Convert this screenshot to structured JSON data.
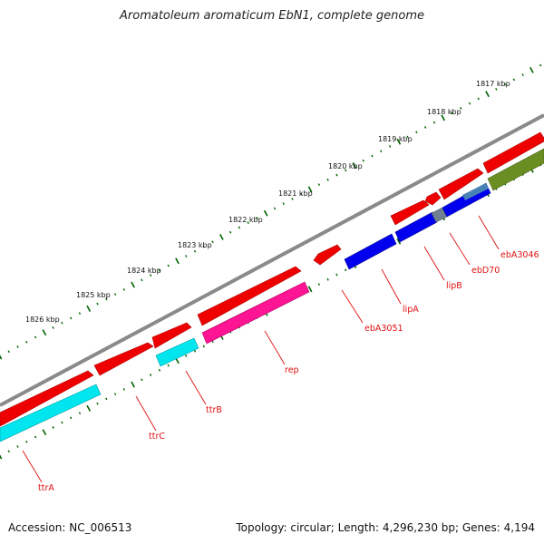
{
  "title": "Aromatoleum aromaticum EbN1, complete genome",
  "accession": "Accession: NC_006513",
  "stats": "Topology: circular; Length: 4,296,230 bp; Genes: 4,194",
  "scale_labels": [
    "1817 kbp",
    "1818 kbp",
    "1819 kbp",
    "1820 kbp",
    "1821 kbp",
    "1822 kbp",
    "1823 kbp",
    "1824 kbp",
    "1825 kbp",
    "1826 kbp"
  ],
  "gene_labels": [
    "ebA3046",
    "ebD70",
    "lipB",
    "lipA",
    "ebA3051",
    "rep",
    "ttrB",
    "ttrC",
    "ttrA"
  ],
  "colors": {
    "backbone": "#888888",
    "cds": "#ee0000",
    "cyan_feature": "#00e5ee",
    "blue_feature": "#0000ee",
    "pink_feature": "#ff1493",
    "olive_feature": "#6b8e23",
    "gray_feature": "#708090",
    "steel_feature": "#4682b4",
    "tick": "#006400",
    "label": "#e01010"
  }
}
